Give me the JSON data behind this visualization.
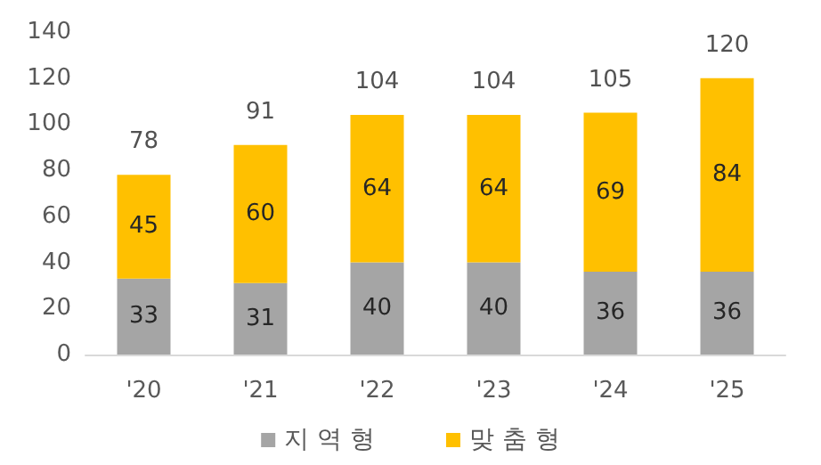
{
  "chart_data": {
    "type": "bar",
    "stacked": true,
    "categories": [
      "'20",
      "'21",
      "'22",
      "'23",
      "'24",
      "'25"
    ],
    "series": [
      {
        "name": "지 역 형",
        "color": "#a5a5a5",
        "values": [
          33,
          31,
          40,
          40,
          36,
          36
        ]
      },
      {
        "name": "맞 춤 형",
        "color": "#ffc000",
        "values": [
          45,
          60,
          64,
          64,
          69,
          84
        ]
      }
    ],
    "totals": [
      "78",
      "91",
      "104",
      "104",
      "105",
      "120"
    ],
    "data_labels": true,
    "ylim": [
      0,
      140
    ],
    "yticks": [
      0,
      20,
      40,
      60,
      80,
      100,
      120,
      140
    ],
    "grid": false,
    "legend": "bottom"
  }
}
